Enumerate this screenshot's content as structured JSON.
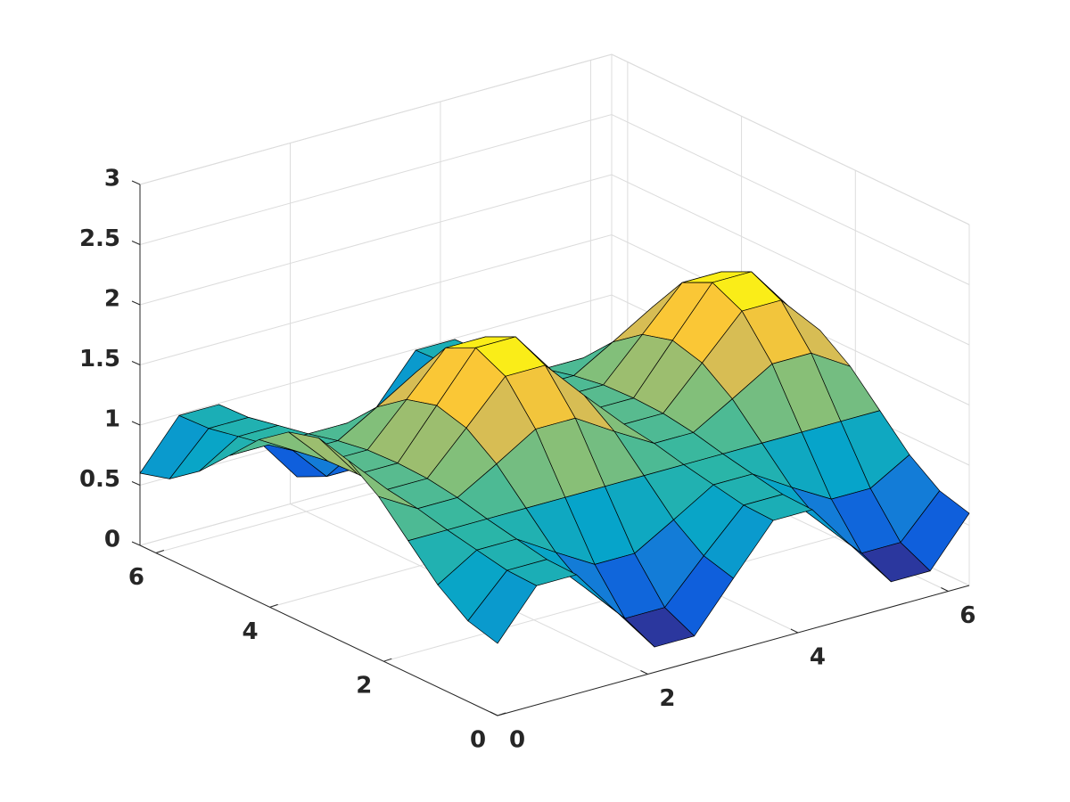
{
  "chart_data": {
    "type": "surface",
    "x": [
      0,
      0.52,
      1.05,
      1.57,
      2.09,
      2.62,
      3.14,
      3.67,
      4.19,
      4.71,
      5.24,
      5.76,
      6.28
    ],
    "y": [
      0,
      0.52,
      1.05,
      1.57,
      2.09,
      2.62,
      3.14,
      3.67,
      4.19,
      4.71,
      5.24,
      5.76,
      6.28
    ],
    "z": [
      [
        0.6,
        0.99,
        0.99,
        0.6,
        0.21,
        0.21,
        0.6,
        0.99,
        0.99,
        0.6,
        0.21,
        0.21,
        0.6
      ],
      [
        0.67,
        1.0,
        1.0,
        0.67,
        0.33,
        0.33,
        0.67,
        1.0,
        1.0,
        0.67,
        0.33,
        0.33,
        0.67
      ],
      [
        0.85,
        1.05,
        1.05,
        0.85,
        0.66,
        0.66,
        0.85,
        1.05,
        1.05,
        0.85,
        0.66,
        0.66,
        0.85
      ],
      [
        1.1,
        1.1,
        1.1,
        1.1,
        1.1,
        1.1,
        1.1,
        1.1,
        1.1,
        1.1,
        1.1,
        1.1,
        1.1
      ],
      [
        1.35,
        1.16,
        1.16,
        1.35,
        1.55,
        1.55,
        1.35,
        1.16,
        1.16,
        1.35,
        1.55,
        1.55,
        1.35
      ],
      [
        1.53,
        1.2,
        1.2,
        1.53,
        1.87,
        1.87,
        1.53,
        1.2,
        1.2,
        1.53,
        1.87,
        1.87,
        1.53
      ],
      [
        1.6,
        1.21,
        1.21,
        1.6,
        1.99,
        1.99,
        1.6,
        1.21,
        1.21,
        1.6,
        1.99,
        1.99,
        1.6
      ],
      [
        1.53,
        1.2,
        1.2,
        1.53,
        1.87,
        1.87,
        1.53,
        1.2,
        1.2,
        1.53,
        1.87,
        1.87,
        1.53
      ],
      [
        1.35,
        1.16,
        1.16,
        1.35,
        1.55,
        1.55,
        1.35,
        1.16,
        1.16,
        1.35,
        1.55,
        1.55,
        1.35
      ],
      [
        1.1,
        1.1,
        1.1,
        1.1,
        1.1,
        1.1,
        1.1,
        1.1,
        1.1,
        1.1,
        1.1,
        1.1,
        1.1
      ],
      [
        0.85,
        1.05,
        1.05,
        0.85,
        0.66,
        0.66,
        0.85,
        1.05,
        1.05,
        0.85,
        0.66,
        0.66,
        0.85
      ],
      [
        0.67,
        1.0,
        1.0,
        0.67,
        0.33,
        0.33,
        0.67,
        1.0,
        1.0,
        0.67,
        0.33,
        0.33,
        0.67
      ],
      [
        0.6,
        0.99,
        0.99,
        0.6,
        0.21,
        0.21,
        0.6,
        0.99,
        0.99,
        0.6,
        0.21,
        0.21,
        0.6
      ]
    ],
    "xlim": [
      0,
      6.28
    ],
    "ylim": [
      0,
      6.28
    ],
    "zlim": [
      0,
      3
    ],
    "xticks": [
      0,
      2,
      4,
      6
    ],
    "yticks": [
      0,
      2,
      4,
      6
    ],
    "zticks": [
      0,
      0.5,
      1,
      1.5,
      2,
      2.5,
      3
    ],
    "grid": true,
    "colormap": [
      "#352a87",
      "#0f5cdd",
      "#1481d6",
      "#06a4ca",
      "#2eb7a4",
      "#87bf77",
      "#d1bb59",
      "#fec832",
      "#f9fb0e"
    ]
  }
}
